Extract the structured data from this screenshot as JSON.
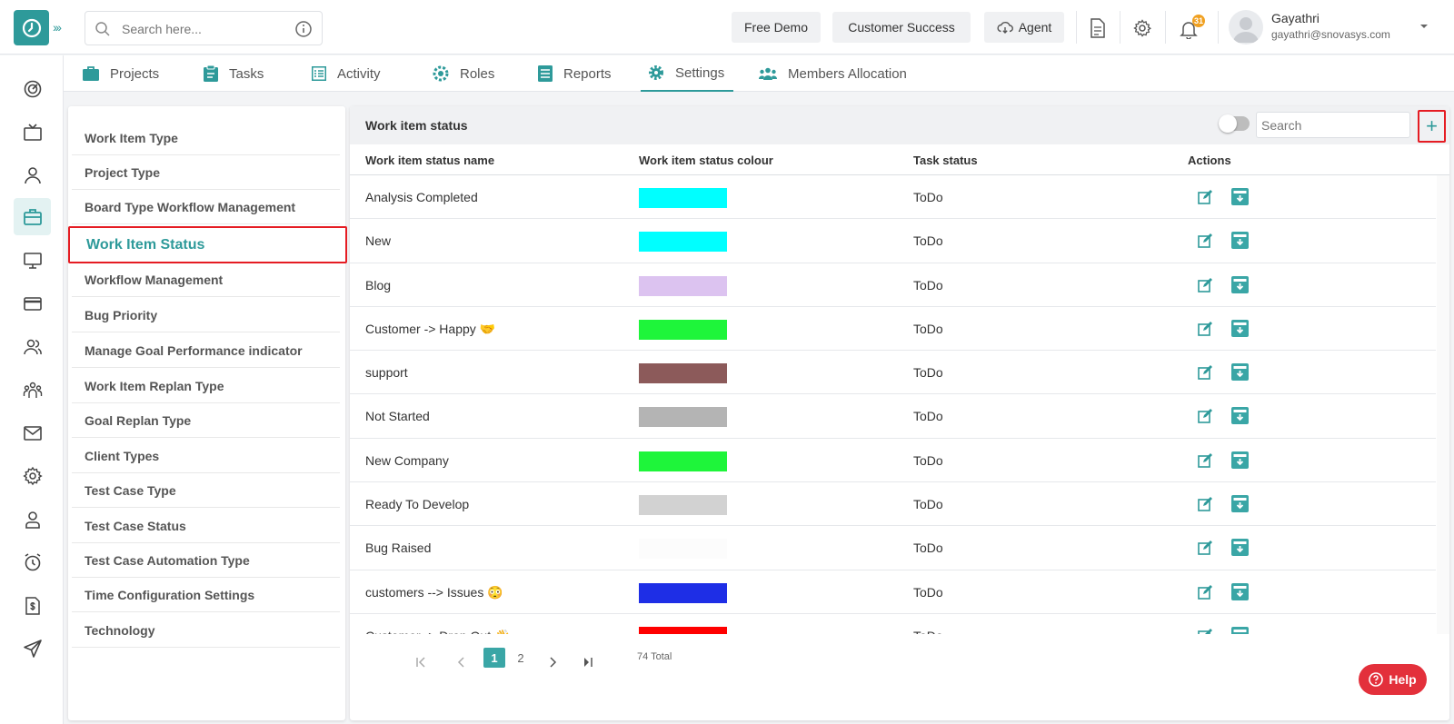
{
  "topbar": {
    "search_placeholder": "Search here...",
    "free_demo": "Free Demo",
    "customer_success": "Customer Success",
    "agent": "Agent",
    "notification_count": "31",
    "user_name": "Gayathri",
    "user_email": "gayathri@snovasys.com"
  },
  "tabs": [
    {
      "label": "Projects",
      "icon": "briefcase-icon"
    },
    {
      "label": "Tasks",
      "icon": "clipboard-icon"
    },
    {
      "label": "Activity",
      "icon": "list-icon"
    },
    {
      "label": "Roles",
      "icon": "roles-gear-icon"
    },
    {
      "label": "Reports",
      "icon": "report-icon"
    },
    {
      "label": "Settings",
      "icon": "gear-icon",
      "active": true
    },
    {
      "label": "Members Allocation",
      "icon": "users-icon"
    }
  ],
  "settings_menu": [
    "Work Item Type",
    "Project Type",
    "Board Type Workflow Management",
    "Work Item Status",
    "Workflow Management",
    "Bug Priority",
    "Manage Goal Performance indicator",
    "Work Item Replan Type",
    "Goal Replan Type",
    "Client Types",
    "Test Case Type",
    "Test Case Status",
    "Test Case Automation Type",
    "Time Configuration Settings",
    "Technology"
  ],
  "active_menu": "Work Item Status",
  "panel": {
    "title": "Work item status",
    "search_placeholder": "Search",
    "add_label": "+"
  },
  "table": {
    "headers": [
      "Work item status name",
      "Work item status colour",
      "Task status",
      "Actions"
    ],
    "rows": [
      {
        "name": "Analysis Completed",
        "colour": "#00ffff",
        "task_status": "ToDo"
      },
      {
        "name": "New",
        "colour": "#00ffff",
        "task_status": "ToDo"
      },
      {
        "name": "Blog",
        "colour": "#dcc3f0",
        "task_status": "ToDo"
      },
      {
        "name": "Customer -> Happy 🤝",
        "colour": "#1ef53a",
        "task_status": "ToDo"
      },
      {
        "name": "support",
        "colour": "#8c5a5a",
        "task_status": "ToDo"
      },
      {
        "name": "Not Started",
        "colour": "#b4b4b4",
        "task_status": "ToDo"
      },
      {
        "name": "New Company",
        "colour": "#1ef53a",
        "task_status": "ToDo"
      },
      {
        "name": "Ready To Develop",
        "colour": "#d2d2d2",
        "task_status": "ToDo"
      },
      {
        "name": "Bug Raised",
        "colour": "#fcfcfc",
        "task_status": "ToDo"
      },
      {
        "name": "customers --> Issues 😳",
        "colour": "#1e2ee6",
        "task_status": "ToDo"
      },
      {
        "name": "Customer -> Drop Out 👋",
        "colour": "#ff0000",
        "task_status": "ToDo"
      }
    ]
  },
  "pagination": {
    "current": "1",
    "next_page": "2",
    "total": "74 Total"
  },
  "help_label": "Help",
  "colors": {
    "accent": "#2e9a9a",
    "highlight": "#e51c23",
    "help": "#e3303b"
  }
}
